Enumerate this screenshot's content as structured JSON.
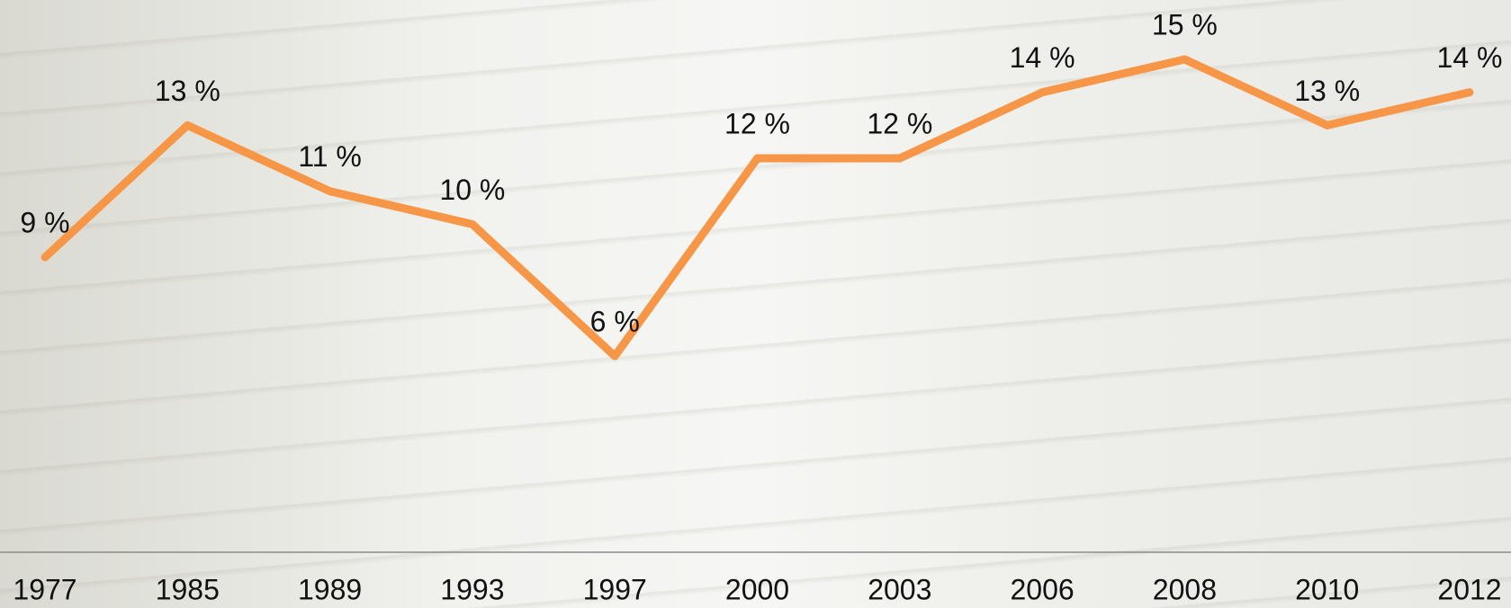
{
  "chart_data": {
    "type": "line",
    "categories": [
      "1977",
      "1985",
      "1989",
      "1993",
      "1997",
      "2000",
      "2003",
      "2006",
      "2008",
      "2010",
      "2012"
    ],
    "values": [
      9,
      13,
      11,
      10,
      6,
      12,
      12,
      14,
      15,
      13,
      14
    ],
    "value_labels": [
      "9 %",
      "13 %",
      "11 %",
      "10 %",
      "6 %",
      "12 %",
      "12 %",
      "14 %",
      "15 %",
      "13 %",
      "14 %"
    ],
    "color": "#f79646"
  }
}
